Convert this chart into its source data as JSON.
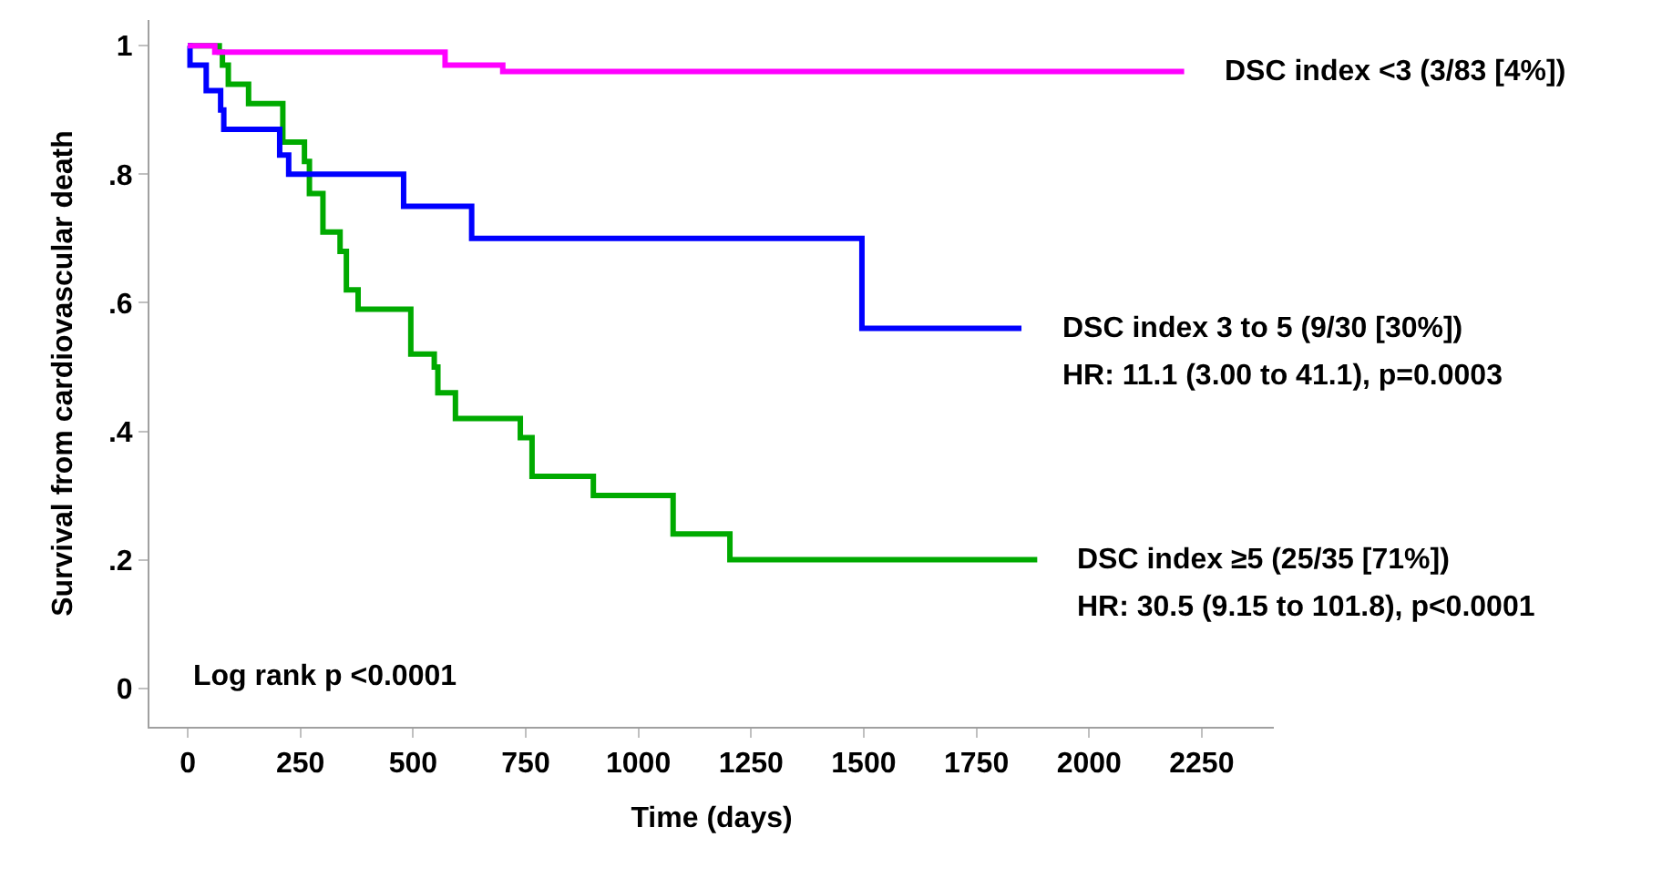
{
  "chart_data": {
    "type": "step",
    "xlabel": "Time (days)",
    "ylabel": "Survival from cardiovascular death",
    "xlim": [
      -85,
      2410
    ],
    "xticks": [
      0,
      250,
      500,
      750,
      1000,
      1250,
      1500,
      1750,
      2000,
      2250
    ],
    "ylim": [
      -0.06,
      1.04
    ],
    "yticks": [
      0,
      {
        "value": 0.2,
        "label": ".2"
      },
      {
        "value": 0.4,
        "label": ".4"
      },
      {
        "value": 0.6,
        "label": ".6"
      },
      {
        "value": 0.8,
        "label": ".8"
      },
      1
    ],
    "marker": "none",
    "line_style": "solid",
    "series": [
      {
        "name": "DSC index <3 (3/83 [4%])",
        "color": "#ff00ff",
        "x": [
          0,
          60,
          571,
          699,
          2211
        ],
        "values": [
          1.0,
          0.99,
          0.97,
          0.96,
          0.96
        ]
      },
      {
        "name": "DSC index 3 to 5 (9/30 [30%])",
        "color": "#0000ff",
        "x": [
          0,
          5,
          41,
          73,
          80,
          204,
          224,
          479,
          630,
          1496,
          1850
        ],
        "values": [
          1.0,
          0.97,
          0.93,
          0.9,
          0.87,
          0.83,
          0.8,
          0.75,
          0.7,
          0.56,
          0.56
        ]
      },
      {
        "name": "DSC index ≥5 (25/35 [71%])",
        "color": "#00aa00",
        "x": [
          0,
          70,
          77,
          90,
          135,
          211,
          259,
          270,
          300,
          338,
          352,
          378,
          495,
          547,
          555,
          594,
          738,
          764,
          900,
          1077,
          1203,
          1885
        ],
        "values": [
          1.0,
          0.99,
          0.97,
          0.94,
          0.91,
          0.85,
          0.82,
          0.77,
          0.71,
          0.68,
          0.62,
          0.59,
          0.52,
          0.5,
          0.46,
          0.42,
          0.39,
          0.33,
          0.3,
          0.24,
          0.2,
          0.2
        ]
      }
    ],
    "annotations": [
      "HR: 11.1 (3.00 to 41.1), p=0.0003",
      "HR: 30.5 (9.15 to 101.8), p<0.0001",
      "Log rank p <0.0001"
    ]
  }
}
